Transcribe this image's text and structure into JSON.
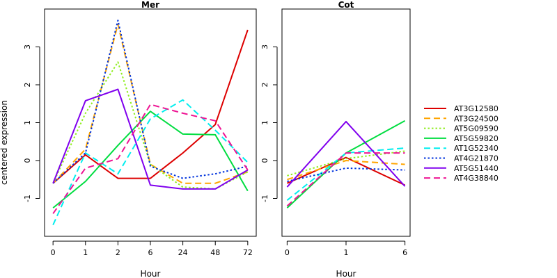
{
  "figure": {
    "ylabel": "centered expression",
    "legend_position": "right"
  },
  "chart_data": [
    {
      "type": "line",
      "title": "Mer",
      "xlabel": "Hour",
      "ylabel": "centered expression",
      "categories": [
        "0",
        "1",
        "2",
        "6",
        "24",
        "48",
        "72"
      ],
      "ylim": [
        -2.0,
        4.0
      ],
      "yticks": [
        -1,
        0,
        1,
        2,
        3
      ],
      "grid": false,
      "series": [
        {
          "name": "AT3G12580",
          "color": "#dd0000",
          "dash": "solid",
          "values": [
            -0.6,
            0.15,
            -0.47,
            -0.47,
            0.2,
            0.95,
            3.45
          ]
        },
        {
          "name": "AT3G24500",
          "color": "#ffa500",
          "dash": "long",
          "values": [
            -0.6,
            0.3,
            3.6,
            -0.1,
            -0.6,
            -0.6,
            -0.3
          ]
        },
        {
          "name": "AT5G09590",
          "color": "#90ee20",
          "dash": "dotted",
          "values": [
            -0.6,
            1.25,
            2.6,
            -0.1,
            -0.7,
            -0.75,
            -0.3
          ]
        },
        {
          "name": "AT5G59820",
          "color": "#00dd40",
          "dash": "solid",
          "values": [
            -1.25,
            -0.55,
            0.4,
            1.3,
            0.7,
            0.68,
            -0.8
          ]
        },
        {
          "name": "AT1G52340",
          "color": "#00eeee",
          "dash": "long",
          "values": [
            -1.7,
            0.2,
            -0.35,
            1.1,
            1.6,
            0.8,
            -0.05
          ]
        },
        {
          "name": "AT4G21870",
          "color": "#0033dd",
          "dash": "dotted",
          "values": [
            -0.6,
            0.2,
            3.7,
            -0.15,
            -0.47,
            -0.35,
            -0.15
          ]
        },
        {
          "name": "AT5G51440",
          "color": "#8000ee",
          "dash": "solid",
          "values": [
            -0.6,
            1.58,
            1.88,
            -0.65,
            -0.75,
            -0.75,
            -0.25
          ]
        },
        {
          "name": "AT4G38840",
          "color": "#ee1493",
          "dash": "long",
          "values": [
            -1.4,
            -0.2,
            0.05,
            1.48,
            1.25,
            1.05,
            -0.25
          ]
        }
      ]
    },
    {
      "type": "line",
      "title": "Cot",
      "xlabel": "Hour",
      "categories": [
        "0",
        "1",
        "6"
      ],
      "ylim": [
        -2.0,
        4.0
      ],
      "yticks": [
        -1,
        0,
        1,
        2,
        3
      ],
      "grid": false,
      "series": [
        {
          "name": "AT3G12580",
          "color": "#dd0000",
          "dash": "solid",
          "values": [
            -0.6,
            0.08,
            -0.65
          ]
        },
        {
          "name": "AT3G24500",
          "color": "#ffa500",
          "dash": "long",
          "values": [
            -0.5,
            0.0,
            -0.1
          ]
        },
        {
          "name": "AT5G09590",
          "color": "#90ee20",
          "dash": "dotted",
          "values": [
            -0.4,
            0.05,
            0.25
          ]
        },
        {
          "name": "AT5G59820",
          "color": "#00dd40",
          "dash": "solid",
          "values": [
            -1.25,
            0.2,
            1.05
          ]
        },
        {
          "name": "AT1G52340",
          "color": "#00eeee",
          "dash": "long",
          "values": [
            -1.05,
            0.2,
            0.33
          ]
        },
        {
          "name": "AT4G21870",
          "color": "#0033dd",
          "dash": "dotted",
          "values": [
            -0.55,
            -0.2,
            -0.25
          ]
        },
        {
          "name": "AT5G51440",
          "color": "#8000ee",
          "dash": "solid",
          "values": [
            -0.7,
            1.03,
            -0.68
          ]
        },
        {
          "name": "AT4G38840",
          "color": "#ee1493",
          "dash": "long",
          "values": [
            -1.2,
            0.2,
            0.2
          ]
        }
      ]
    }
  ]
}
